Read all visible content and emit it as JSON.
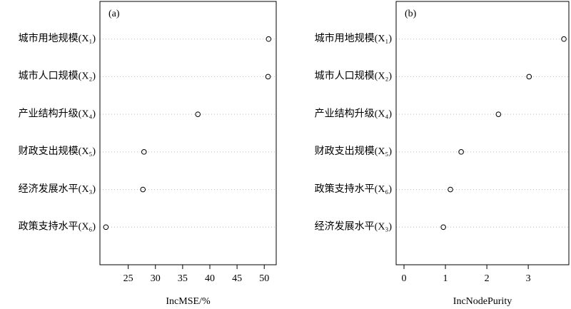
{
  "chart_data": [
    {
      "type": "dot",
      "annotation": "(a)",
      "x_label": "IncMSE/%",
      "categories": [
        "城市用地规模(X₁)",
        "城市人口规模(X₂)",
        "产业结构升级(X₄)",
        "财政支出规模(X₅)",
        "经济发展水平(X₃)",
        "政策支持水平(X₆)"
      ],
      "values": [
        50.8,
        50.7,
        37.8,
        27.9,
        27.7,
        20.9
      ],
      "xlim": [
        19.8,
        52.2
      ],
      "xticks": [
        25,
        30,
        35,
        40,
        45,
        50
      ],
      "grid": true,
      "color": "#000000"
    },
    {
      "type": "dot",
      "annotation": "(b)",
      "x_label": "IncNodePurity",
      "categories": [
        "城市用地规模(X₁)",
        "城市人口规模(X₂)",
        "产业结构升级(X₄)",
        "财政支出规模(X₅)",
        "政策支持水平(X₆)",
        "经济发展水平(X₃)"
      ],
      "values": [
        3.86,
        3.02,
        2.28,
        1.38,
        1.12,
        0.95
      ],
      "xlim": [
        -0.19,
        3.98
      ],
      "xticks": [
        0,
        1,
        2,
        3
      ],
      "grid": true,
      "color": "#000000"
    }
  ]
}
